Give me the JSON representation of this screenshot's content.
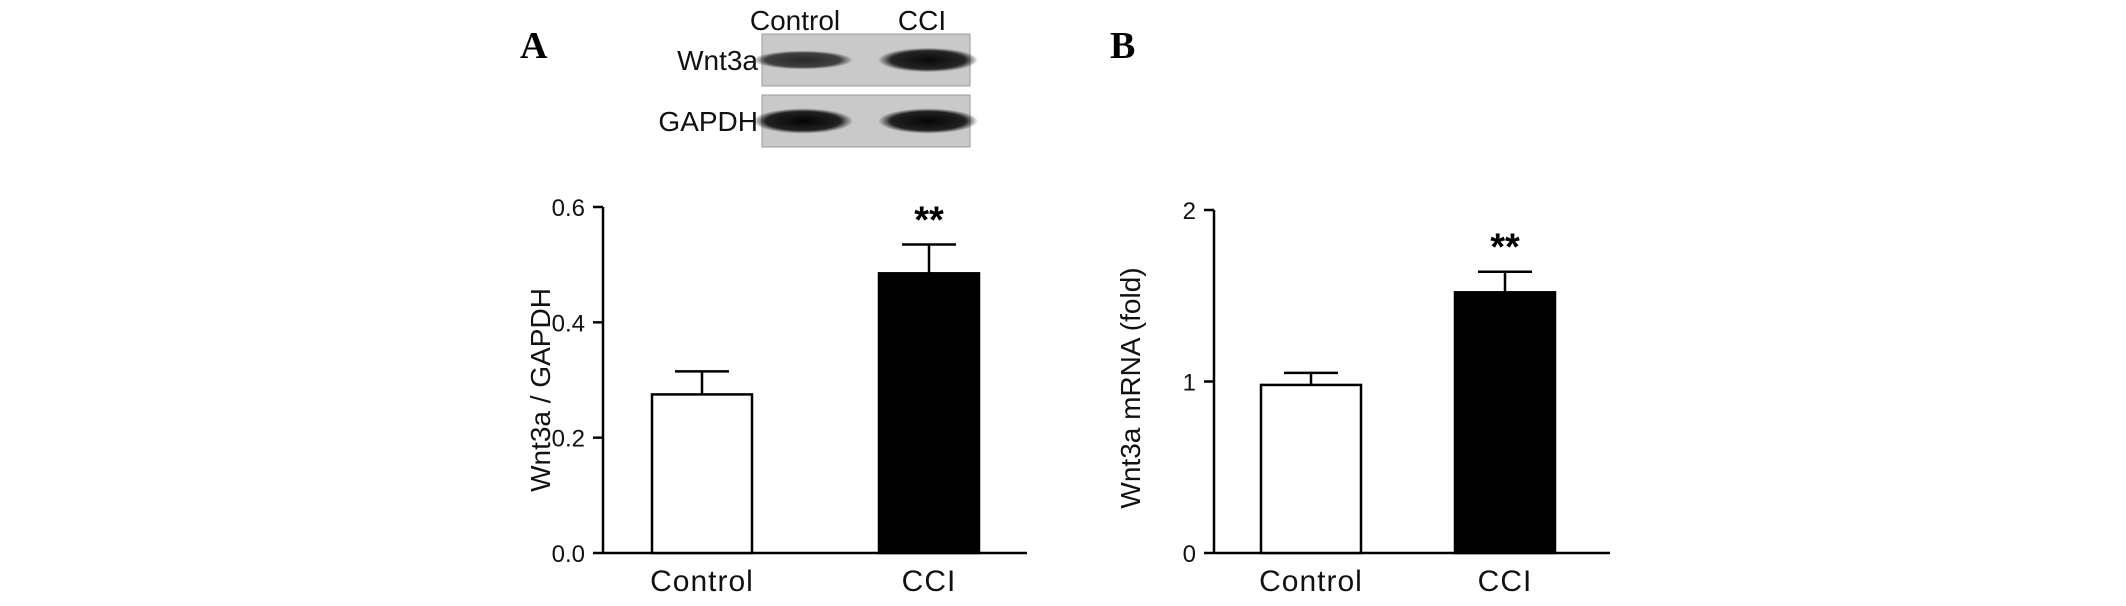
{
  "panels": {
    "a": {
      "letter": "A"
    },
    "b": {
      "letter": "B"
    }
  },
  "blot": {
    "lanes": [
      "Control",
      "CCI"
    ],
    "rows": [
      {
        "label": "Wnt3a",
        "band_intensity": [
          0.55,
          0.9
        ]
      },
      {
        "label": "GAPDH",
        "band_intensity": [
          0.95,
          0.95
        ]
      }
    ]
  },
  "chart_data": [
    {
      "type": "bar",
      "panel": "A",
      "categories": [
        "Control",
        "CCI"
      ],
      "values": [
        0.275,
        0.485
      ],
      "errors": [
        0.04,
        0.05
      ],
      "bar_colors": [
        "#ffffff",
        "#000000"
      ],
      "significance": [
        "",
        "**"
      ],
      "ylabel": "Wnt3a / GAPDH",
      "xlabel": "",
      "ylim": [
        0,
        0.6
      ],
      "yticks": [
        0.0,
        0.2,
        0.4,
        0.6
      ],
      "ytick_labels": [
        "0.0",
        "0.2",
        "0.4",
        "0.6"
      ]
    },
    {
      "type": "bar",
      "panel": "B",
      "categories": [
        "Control",
        "CCI"
      ],
      "values": [
        0.98,
        1.52
      ],
      "errors": [
        0.07,
        0.12
      ],
      "bar_colors": [
        "#ffffff",
        "#000000"
      ],
      "significance": [
        "",
        "**"
      ],
      "ylabel": "Wnt3a mRNA (fold)",
      "xlabel": "",
      "ylim": [
        0,
        2
      ],
      "yticks": [
        0,
        1,
        2
      ],
      "ytick_labels": [
        "0",
        "1",
        "2"
      ]
    }
  ]
}
